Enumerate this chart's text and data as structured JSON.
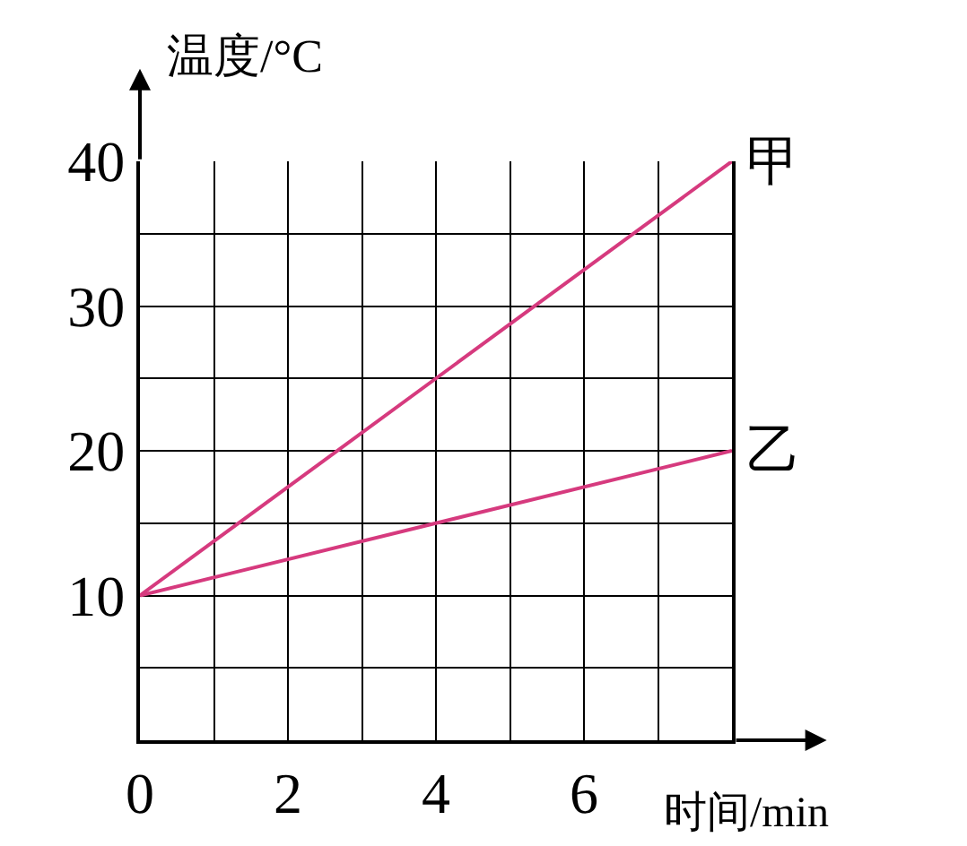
{
  "chart_data": {
    "type": "line",
    "xlabel": "时间/min",
    "ylabel": "温度/°C",
    "x": [
      0,
      8
    ],
    "series": [
      {
        "name": "甲",
        "color": "#d63a7e",
        "values": [
          10,
          40
        ]
      },
      {
        "name": "乙",
        "color": "#d63a7e",
        "values": [
          10,
          20
        ]
      }
    ],
    "xlim": [
      0,
      8
    ],
    "ylim": [
      0,
      40
    ],
    "xticks": [
      0,
      {
        "value": 1,
        "label": null
      },
      2,
      {
        "value": 3,
        "label": null
      },
      4,
      {
        "value": 5,
        "label": null
      },
      6,
      {
        "value": 7,
        "label": null
      },
      {
        "value": 8,
        "label": null
      }
    ],
    "yticks": [
      {
        "value": 0,
        "label": null
      },
      {
        "value": 5,
        "label": null
      },
      10,
      {
        "value": 15,
        "label": null
      },
      20,
      {
        "value": 25,
        "label": null
      },
      30,
      {
        "value": 35,
        "label": null
      },
      40
    ],
    "grid": true,
    "legend": false,
    "marker": "none",
    "line_style": "solid"
  }
}
